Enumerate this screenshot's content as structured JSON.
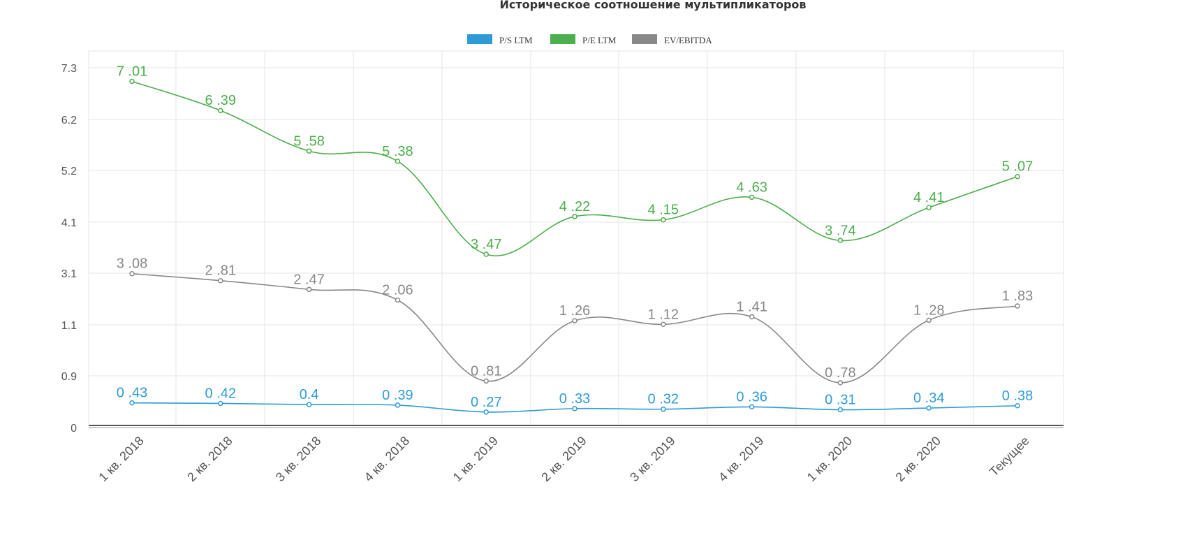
{
  "chart_data": {
    "type": "line",
    "title": "Историческое соотношение мультипликаторов",
    "legend_position": "top-center",
    "grid": true,
    "categories": [
      "1 кв. 2018",
      "2 кв. 2018",
      "3 кв. 2018",
      "4 кв. 2018",
      "1 кв. 2019",
      "2 кв. 2019",
      "3 кв. 2019",
      "4 кв. 2019",
      "1 кв. 2020",
      "2 кв. 2020",
      "Текущее"
    ],
    "y_ticks": [
      "0",
      "0.9",
      "1.1",
      "3.1",
      "4.1",
      "5.2",
      "6.2",
      "7.3"
    ],
    "series": [
      {
        "name": "P/S LTM",
        "color": "#2e9bd6",
        "values": [
          0.43,
          0.42,
          0.4,
          0.39,
          0.27,
          0.33,
          0.32,
          0.36,
          0.31,
          0.34,
          0.38
        ],
        "labels": [
          "0 .43",
          "0 .42",
          "0.4",
          "0 .39",
          "0 .27",
          "0 .33",
          "0 .32",
          "0 .36",
          "0 .31",
          "0 .34",
          "0 .38"
        ]
      },
      {
        "name": "P/E LTM",
        "color": "#4cae4c",
        "values": [
          7.01,
          6.39,
          5.58,
          5.38,
          3.47,
          4.22,
          4.15,
          4.63,
          3.74,
          4.41,
          5.07
        ],
        "labels": [
          "7 .01",
          "6 .39",
          "5 .58",
          "5 .38",
          "3 .47",
          "4 .22",
          "4 .15",
          "4 .63",
          "3 .74",
          "4 .41",
          "5 .07"
        ]
      },
      {
        "name": "EV/EBITDA",
        "color": "#888888",
        "values": [
          3.08,
          2.81,
          2.47,
          2.06,
          0.81,
          1.26,
          1.12,
          1.41,
          0.78,
          1.28,
          1.83
        ],
        "labels": [
          "3 .08",
          "2 .81",
          "2 .47",
          "2 .06",
          "0 .81",
          "1 .26",
          "1 .12",
          "1 .41",
          "0 .78",
          "1 .28",
          "1 .83"
        ]
      }
    ]
  }
}
